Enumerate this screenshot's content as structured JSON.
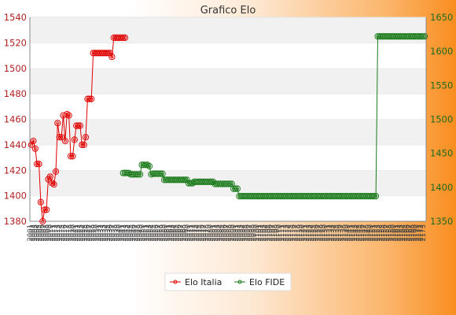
{
  "chart_data": {
    "type": "line",
    "title": "Grafico Elo",
    "y_left": {
      "min": 1380,
      "max": 1540,
      "ticks": [
        1380,
        1400,
        1420,
        1440,
        1460,
        1480,
        1500,
        1520,
        1540
      ]
    },
    "y_right": {
      "min": 1350,
      "max": 1650,
      "ticks": [
        1350,
        1400,
        1450,
        1500,
        1550,
        1600,
        1650
      ]
    },
    "x_tick_labels": [
      "2001",
      "2002",
      "2003",
      "2004",
      "2005",
      "2006",
      "2007",
      "2008",
      "2009",
      "2010",
      "2011",
      "2012",
      "2013",
      "2014",
      "2015",
      "2016",
      "2017",
      "2018",
      "2019",
      "2020",
      "2021",
      "2022",
      "2023",
      "2024",
      "2025",
      "2026",
      "2027",
      "2028",
      "2029",
      "2030",
      "2031",
      "2032",
      "2033",
      "2034",
      "2035",
      "2036",
      "2037",
      "2038",
      "2039",
      "2040",
      "2041",
      "2042",
      "2043",
      "2044",
      "2045",
      "2046",
      "2047",
      "2048",
      "2049",
      "2050",
      "2051",
      "2052",
      "2053",
      "2054",
      "2055",
      "2056",
      "2057",
      "2058",
      "2059",
      "2060",
      "2061",
      "2062",
      "2063",
      "2064",
      "2065",
      "2066",
      "2067",
      "2068",
      "2069",
      "2070",
      "2071",
      "2072",
      "2073",
      "2074",
      "2075",
      "2076",
      "2077",
      "2078",
      "2079",
      "2080",
      "2081",
      "2082",
      "2083",
      "2084",
      "2085",
      "2086",
      "2087",
      "2088",
      "2089",
      "2090",
      "2091",
      "2092",
      "2093",
      "2094",
      "2095",
      "2096",
      "2097",
      "2098",
      "2099",
      "2100",
      "2101",
      "2102",
      "2103",
      "2104",
      "2105",
      "2106",
      "2107",
      "2108",
      "2109",
      "2110",
      "2111",
      "2112",
      "2113",
      "2114",
      "2115",
      "2116",
      "2117",
      "2118",
      "2119",
      "2120",
      "2121",
      "2122",
      "2123",
      "2124",
      "2125",
      "2126",
      "2127",
      "2128",
      "2129",
      "2130",
      "2131",
      "2132",
      "2133",
      "2134",
      "2135",
      "2136",
      "2137",
      "2138",
      "2139",
      "2140",
      "2141",
      "2142",
      "2143",
      "2144",
      "2145",
      "2146",
      "2147",
      "2148",
      "2149",
      "2150",
      "2151",
      "2152",
      "2153",
      "2154",
      "2155",
      "2156",
      "2157",
      "2158",
      "2159",
      "2160",
      "2161",
      "2162",
      "2163",
      "2164",
      "2165",
      "2166",
      "2167",
      "2168",
      "2169",
      "2170",
      "2171",
      "2172",
      "2173"
    ],
    "grid": "horizontal bands",
    "legend_position": "bottom-center",
    "series": [
      {
        "name": "Elo Italia",
        "axis": "left",
        "color": "#e00000",
        "points": [
          [
            0,
            1440
          ],
          [
            1,
            1443
          ],
          [
            2,
            1437
          ],
          [
            3,
            1425
          ],
          [
            4,
            1425
          ],
          [
            5,
            1395
          ],
          [
            6,
            1380
          ],
          [
            7,
            1389
          ],
          [
            8,
            1389
          ],
          [
            9,
            1413
          ],
          [
            10,
            1415
          ],
          [
            11,
            1410
          ],
          [
            12,
            1409
          ],
          [
            13,
            1419
          ],
          [
            14,
            1457
          ],
          [
            15,
            1446
          ],
          [
            16,
            1446
          ],
          [
            17,
            1463
          ],
          [
            18,
            1443
          ],
          [
            19,
            1464
          ],
          [
            20,
            1463
          ],
          [
            21,
            1431
          ],
          [
            22,
            1431
          ],
          [
            23,
            1444
          ],
          [
            24,
            1455
          ],
          [
            25,
            1455
          ],
          [
            26,
            1455
          ],
          [
            27,
            1440
          ],
          [
            28,
            1440
          ],
          [
            29,
            1446
          ],
          [
            30,
            1476
          ],
          [
            31,
            1476
          ],
          [
            32,
            1476
          ],
          [
            33,
            1512
          ],
          [
            34,
            1512
          ],
          [
            35,
            1512
          ],
          [
            36,
            1512
          ],
          [
            37,
            1512
          ],
          [
            38,
            1512
          ],
          [
            39,
            1512
          ],
          [
            40,
            1512
          ],
          [
            41,
            1512
          ],
          [
            42,
            1512
          ],
          [
            43,
            1509
          ],
          [
            44,
            1524
          ],
          [
            45,
            1524
          ],
          [
            46,
            1524
          ],
          [
            47,
            1524
          ],
          [
            48,
            1524
          ],
          [
            49,
            1524
          ],
          [
            50,
            1524
          ]
        ]
      },
      {
        "name": "Elo FIDE",
        "axis": "right",
        "color": "#1a7a1a",
        "points": [
          [
            49,
            1421
          ],
          [
            50,
            1421
          ],
          [
            51,
            1421
          ],
          [
            52,
            1421
          ],
          [
            53,
            1419
          ],
          [
            54,
            1419
          ],
          [
            55,
            1419
          ],
          [
            56,
            1419
          ],
          [
            57,
            1419
          ],
          [
            58,
            1419
          ],
          [
            59,
            1433
          ],
          [
            60,
            1433
          ],
          [
            61,
            1433
          ],
          [
            62,
            1433
          ],
          [
            63,
            1431
          ],
          [
            64,
            1419
          ],
          [
            65,
            1420
          ],
          [
            66,
            1420
          ],
          [
            67,
            1420
          ],
          [
            68,
            1420
          ],
          [
            69,
            1420
          ],
          [
            70,
            1420
          ],
          [
            71,
            1411
          ],
          [
            72,
            1411
          ],
          [
            73,
            1411
          ],
          [
            74,
            1411
          ],
          [
            75,
            1411
          ],
          [
            76,
            1411
          ],
          [
            77,
            1411
          ],
          [
            78,
            1411
          ],
          [
            79,
            1411
          ],
          [
            80,
            1411
          ],
          [
            81,
            1411
          ],
          [
            82,
            1411
          ],
          [
            83,
            1411
          ],
          [
            84,
            1406
          ],
          [
            85,
            1406
          ],
          [
            86,
            1406
          ],
          [
            87,
            1408
          ],
          [
            88,
            1408
          ],
          [
            89,
            1408
          ],
          [
            90,
            1408
          ],
          [
            91,
            1408
          ],
          [
            92,
            1408
          ],
          [
            93,
            1408
          ],
          [
            94,
            1408
          ],
          [
            95,
            1408
          ],
          [
            96,
            1408
          ],
          [
            97,
            1408
          ],
          [
            98,
            1405
          ],
          [
            99,
            1405
          ],
          [
            100,
            1405
          ],
          [
            101,
            1405
          ],
          [
            102,
            1405
          ],
          [
            103,
            1405
          ],
          [
            104,
            1405
          ],
          [
            105,
            1405
          ],
          [
            106,
            1405
          ],
          [
            107,
            1405
          ],
          [
            108,
            1398
          ],
          [
            109,
            1398
          ],
          [
            110,
            1398
          ],
          [
            111,
            1387
          ],
          [
            112,
            1387
          ],
          [
            113,
            1387
          ],
          [
            114,
            1387
          ],
          [
            115,
            1387
          ],
          [
            116,
            1387
          ],
          [
            117,
            1387
          ],
          [
            118,
            1387
          ],
          [
            119,
            1387
          ],
          [
            120,
            1387
          ],
          [
            121,
            1387
          ],
          [
            122,
            1387
          ],
          [
            123,
            1387
          ],
          [
            124,
            1387
          ],
          [
            125,
            1387
          ],
          [
            126,
            1387
          ],
          [
            127,
            1387
          ],
          [
            128,
            1387
          ],
          [
            129,
            1387
          ],
          [
            130,
            1387
          ],
          [
            131,
            1387
          ],
          [
            132,
            1387
          ],
          [
            133,
            1387
          ],
          [
            134,
            1387
          ],
          [
            135,
            1387
          ],
          [
            136,
            1387
          ],
          [
            137,
            1387
          ],
          [
            138,
            1387
          ],
          [
            139,
            1387
          ],
          [
            140,
            1387
          ],
          [
            141,
            1387
          ],
          [
            142,
            1387
          ],
          [
            143,
            1387
          ],
          [
            144,
            1387
          ],
          [
            145,
            1387
          ],
          [
            146,
            1387
          ],
          [
            147,
            1387
          ],
          [
            148,
            1387
          ],
          [
            149,
            1387
          ],
          [
            150,
            1387
          ],
          [
            151,
            1387
          ],
          [
            152,
            1387
          ],
          [
            153,
            1387
          ],
          [
            154,
            1387
          ],
          [
            155,
            1387
          ],
          [
            156,
            1387
          ],
          [
            157,
            1387
          ],
          [
            158,
            1387
          ],
          [
            159,
            1387
          ],
          [
            160,
            1387
          ],
          [
            161,
            1387
          ],
          [
            162,
            1387
          ],
          [
            163,
            1387
          ],
          [
            164,
            1387
          ],
          [
            165,
            1387
          ],
          [
            166,
            1387
          ],
          [
            167,
            1387
          ],
          [
            168,
            1387
          ],
          [
            169,
            1387
          ],
          [
            170,
            1387
          ],
          [
            171,
            1387
          ],
          [
            172,
            1387
          ],
          [
            173,
            1387
          ],
          [
            174,
            1387
          ],
          [
            175,
            1387
          ],
          [
            176,
            1387
          ],
          [
            177,
            1387
          ],
          [
            178,
            1387
          ],
          [
            179,
            1387
          ],
          [
            180,
            1387
          ],
          [
            181,
            1387
          ],
          [
            182,
            1387
          ],
          [
            183,
            1387
          ],
          [
            184,
            1387
          ],
          [
            185,
            1622
          ],
          [
            186,
            1622
          ],
          [
            187,
            1622
          ],
          [
            188,
            1622
          ],
          [
            189,
            1622
          ],
          [
            190,
            1622
          ],
          [
            191,
            1622
          ],
          [
            192,
            1622
          ],
          [
            193,
            1622
          ],
          [
            194,
            1622
          ],
          [
            195,
            1622
          ],
          [
            196,
            1622
          ],
          [
            197,
            1622
          ],
          [
            198,
            1622
          ],
          [
            199,
            1622
          ],
          [
            200,
            1622
          ],
          [
            201,
            1622
          ],
          [
            202,
            1622
          ],
          [
            203,
            1622
          ],
          [
            204,
            1622
          ],
          [
            205,
            1622
          ],
          [
            206,
            1622
          ],
          [
            207,
            1622
          ],
          [
            208,
            1622
          ],
          [
            209,
            1622
          ],
          [
            210,
            1622
          ]
        ]
      }
    ]
  }
}
